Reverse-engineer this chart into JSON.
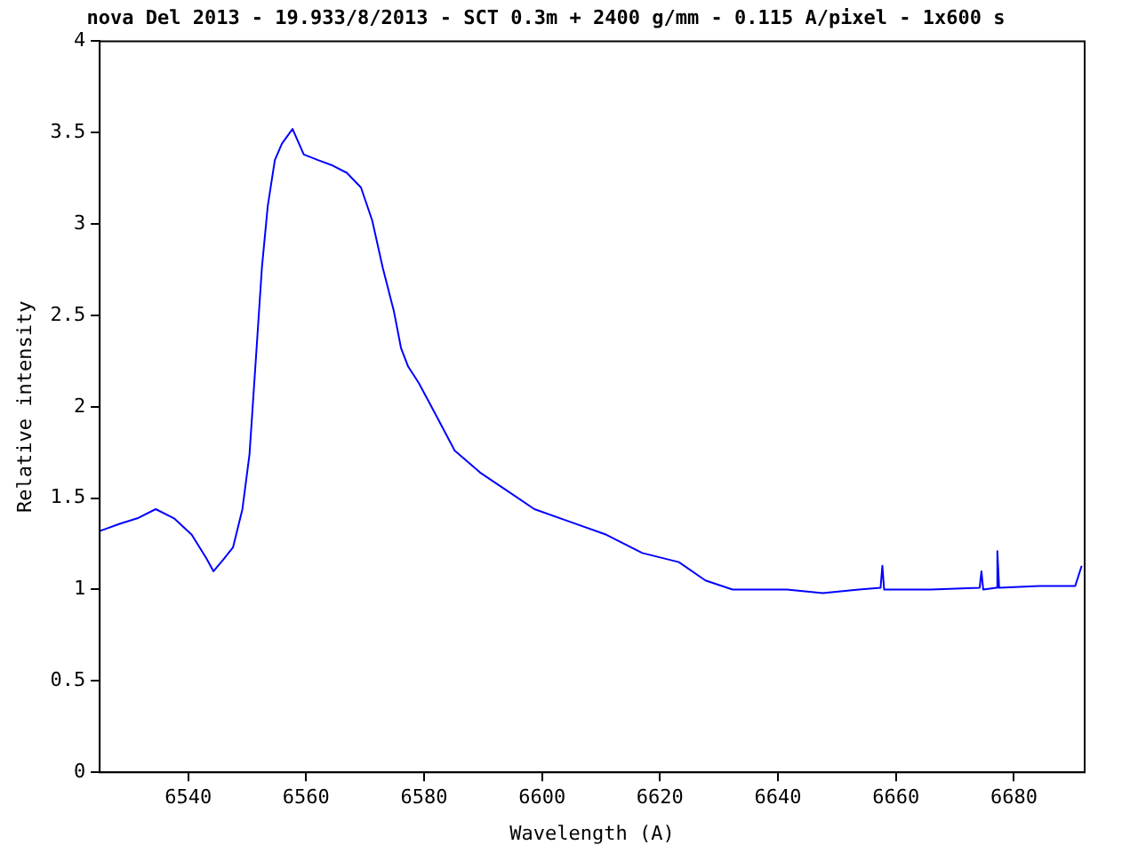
{
  "chart_data": {
    "type": "line",
    "title": "nova Del 2013 - 19.933/8/2013 - SCT 0.3m + 2400 g/mm - 0.115 A/pixel - 1x600 s",
    "xlabel": "Wavelength (A)",
    "ylabel": "Relative intensity",
    "xlim": [
      6525,
      6692
    ],
    "xticks": [
      6540,
      6560,
      6580,
      6600,
      6620,
      6640,
      6660,
      6680
    ],
    "ylim": [
      0,
      4
    ],
    "yticks": [
      0,
      0.5,
      1,
      1.5,
      2,
      2.5,
      3,
      3.5,
      4
    ],
    "legend": false,
    "series": [
      {
        "color": "#0000ff",
        "x": [
          6525,
          6528.4,
          6531.4,
          6534.5,
          6537.6,
          6540.6,
          6543.1,
          6544.3,
          6546.1,
          6547.6,
          6549.2,
          6550.4,
          6551.6,
          6552.5,
          6553.5,
          6554.7,
          6555.9,
          6557.7,
          6559.6,
          6562,
          6564.5,
          6566.9,
          6569.3,
          6571.2,
          6573,
          6574.9,
          6576.1,
          6577.3,
          6579.1,
          6581.6,
          6585.2,
          6589.5,
          6594.1,
          6598.7,
          6604.8,
          6610.9,
          6617,
          6623.2,
          6627.7,
          6632.3,
          6641.5,
          6647.6,
          6653.7,
          6657.4,
          6657.7,
          6658,
          6665.9,
          6674.2,
          6674.5,
          6674.8,
          6677,
          6677.2,
          6677.5,
          6684.3,
          6690.4,
          6691.5
        ],
        "values": [
          1.32,
          1.36,
          1.39,
          1.44,
          1.39,
          1.3,
          1.17,
          1.1,
          1.17,
          1.23,
          1.44,
          1.74,
          2.32,
          2.76,
          3.1,
          3.35,
          3.44,
          3.52,
          3.38,
          3.35,
          3.32,
          3.28,
          3.2,
          3.02,
          2.76,
          2.52,
          2.32,
          2.22,
          2.13,
          1.98,
          1.76,
          1.64,
          1.54,
          1.44,
          1.37,
          1.3,
          1.2,
          1.15,
          1.05,
          1,
          1,
          0.98,
          1,
          1.01,
          1.13,
          1,
          1,
          1.01,
          1.1,
          1,
          1.01,
          1.21,
          1.01,
          1.02,
          1.02,
          1.13
        ]
      }
    ]
  }
}
